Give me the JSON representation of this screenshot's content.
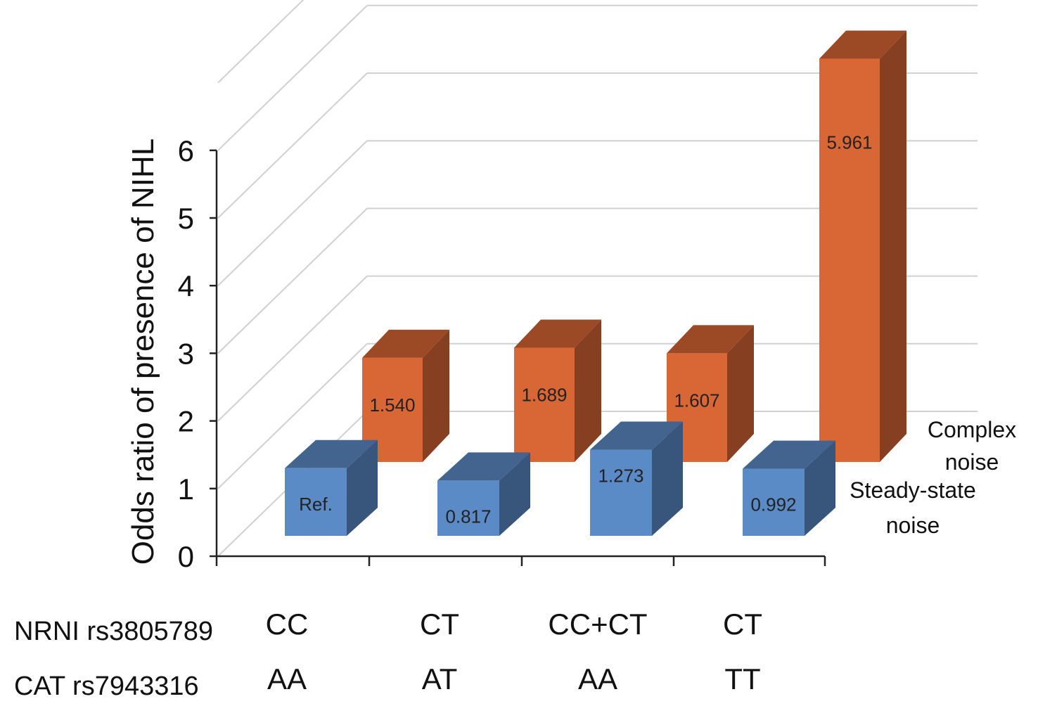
{
  "chart_data": {
    "type": "bar",
    "ylabel": "Odds ratio of presence of NIHL",
    "yticks": [
      "0",
      "1",
      "2",
      "3",
      "4",
      "5",
      "6"
    ],
    "ylim": [
      0,
      6
    ],
    "grid": true,
    "categories": [
      "CC / AA",
      "CT / AT",
      "CC+CT / AA",
      "CT / TT"
    ],
    "category_rows": [
      {
        "label": "NRNI rs3805789",
        "values": [
          "CC",
          "CT",
          "CC+CT",
          "CT"
        ]
      },
      {
        "label": "CAT rs7943316",
        "values": [
          "AA",
          "AT",
          "AA",
          "TT"
        ]
      }
    ],
    "series": [
      {
        "name": "Steady-state noise",
        "color": "#5b8bc6",
        "values": [
          1.0,
          0.817,
          1.273,
          0.992
        ],
        "labels": [
          "Ref.",
          "0.817",
          "1.273",
          "0.992"
        ]
      },
      {
        "name": "Complex noise",
        "color": "#d96635",
        "values": [
          1.54,
          1.689,
          1.607,
          5.961
        ],
        "labels": [
          "1.540",
          "1.689",
          "1.607",
          "5.961"
        ]
      }
    ]
  }
}
